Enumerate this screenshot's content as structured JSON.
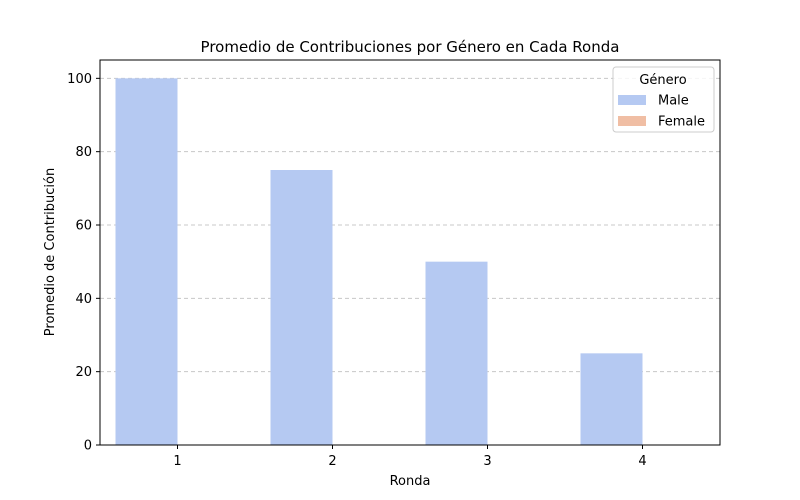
{
  "chart_data": {
    "type": "bar",
    "title": "Promedio de Contribuciones por Género en Cada Ronda",
    "xlabel": "Ronda",
    "ylabel": "Promedio de Contribución",
    "categories": [
      "1",
      "2",
      "3",
      "4"
    ],
    "series": [
      {
        "name": "Male",
        "values": [
          100,
          75,
          50,
          25
        ],
        "color": "#b5c9f2"
      },
      {
        "name": "Female",
        "values": [
          0,
          0,
          0,
          0
        ],
        "color": "#f0bea4"
      }
    ],
    "ylim": [
      0,
      105
    ],
    "yticks": [
      0,
      20,
      40,
      60,
      80,
      100
    ],
    "grid": "y-dashed",
    "legend": {
      "title": "Género",
      "placement": "top-right"
    }
  }
}
